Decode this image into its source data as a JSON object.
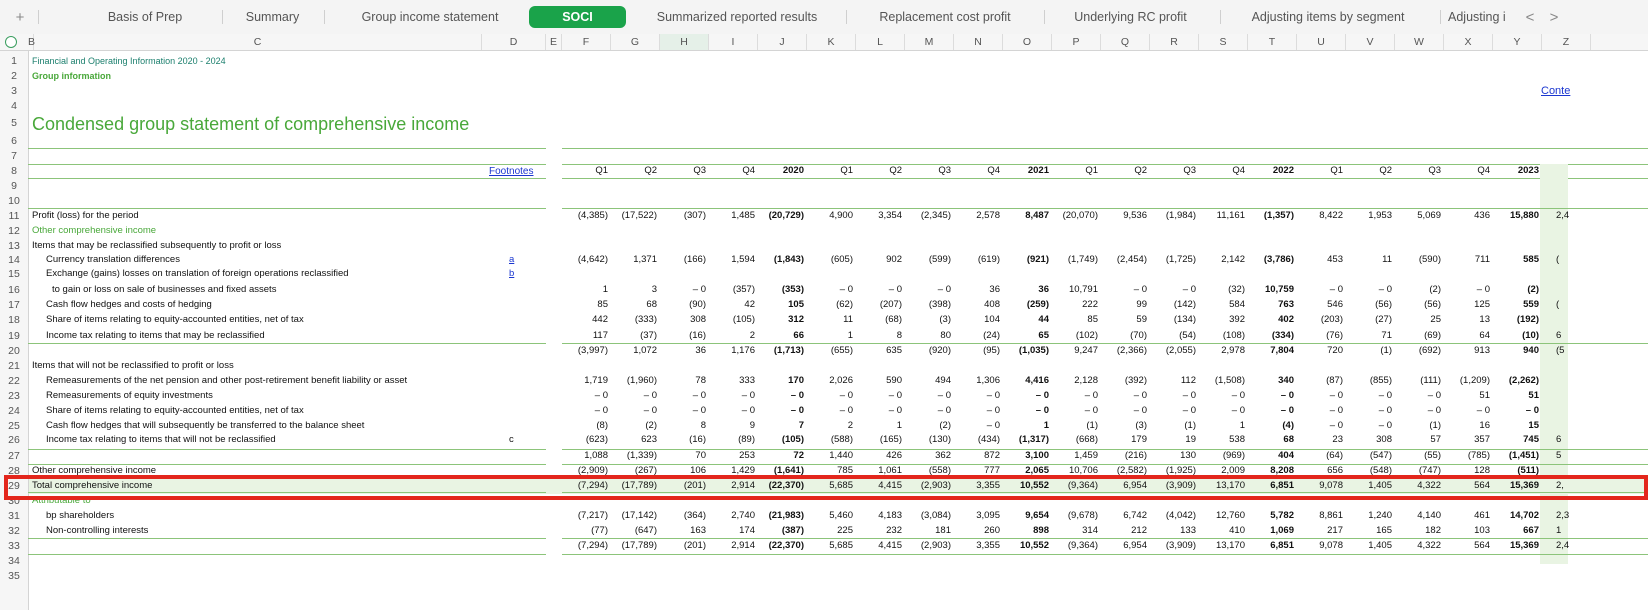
{
  "tabs": {
    "items": [
      "Basis of Prep",
      "Summary",
      "Group income statement",
      "SOCI",
      "Summarized reported results",
      "Replacement cost profit",
      "Underlying RC profit",
      "Adjusting items by segment",
      "Adjusting i"
    ],
    "active": "SOCI",
    "add_icon": "+",
    "prev_icon": "<",
    "next_icon": ">"
  },
  "columns": [
    "B",
    "C",
    "D",
    "E",
    "F",
    "G",
    "H",
    "I",
    "J",
    "K",
    "L",
    "M",
    "N",
    "O",
    "P",
    "Q",
    "R",
    "S",
    "T",
    "U",
    "V",
    "W",
    "X",
    "Y",
    "Z"
  ],
  "selected_column": "H",
  "rows": [
    "1",
    "2",
    "3",
    "4",
    "5",
    "6",
    "7",
    "8",
    "9",
    "10",
    "11",
    "12",
    "13",
    "14",
    "15",
    "16",
    "17",
    "18",
    "19",
    "20",
    "21",
    "22",
    "23",
    "24",
    "25",
    "26",
    "27",
    "28",
    "29",
    "30",
    "31",
    "32",
    "33",
    "34",
    "35"
  ],
  "sheet": {
    "financial_info": "Financial and Operating Information 2020 - 2024",
    "group_info": "Group information",
    "contents_link": "Conte",
    "title": "Condensed group statement of comprehensive income",
    "footnotes": "Footnotes",
    "periods": [
      "Q1",
      "Q2",
      "Q3",
      "Q4",
      "2020",
      "Q1",
      "Q2",
      "Q3",
      "Q4",
      "2021",
      "Q1",
      "Q2",
      "Q3",
      "Q4",
      "2022",
      "Q1",
      "Q2",
      "Q3",
      "Q4",
      "2023"
    ],
    "lines": [
      {
        "label": "Profit (loss) for the period",
        "values": [
          "(4,385)",
          "(17,522)",
          "(307)",
          "1,485",
          "(20,729)",
          "4,900",
          "3,354",
          "(2,345)",
          "2,578",
          "8,487",
          "(20,070)",
          "9,536",
          "(1,984)",
          "11,161",
          "(1,357)",
          "8,422",
          "1,953",
          "5,069",
          "436",
          "15,880"
        ],
        "extra": "2,4"
      },
      {
        "label": "Other comprehensive income",
        "values": []
      },
      {
        "label": "Items that may be reclassified subsequently to profit or loss",
        "values": []
      },
      {
        "label": "Currency translation differences",
        "foot": "a",
        "values": [
          "(4,642)",
          "1,371",
          "(166)",
          "1,594",
          "(1,843)",
          "(605)",
          "902",
          "(599)",
          "(619)",
          "(921)",
          "(1,749)",
          "(2,454)",
          "(1,725)",
          "2,142",
          "(3,786)",
          "453",
          "11",
          "(590)",
          "711",
          "585"
        ],
        "extra": "("
      },
      {
        "label": "Exchange (gains) losses on translation of foreign operations reclassified",
        "foot": "b",
        "values": []
      },
      {
        "label": "to gain or loss on sale of businesses and fixed assets",
        "values": [
          "1",
          "3",
          "– 0",
          "(357)",
          "(353)",
          "– 0",
          "– 0",
          "– 0",
          "36",
          "36",
          "10,791",
          "– 0",
          "– 0",
          "(32)",
          "10,759",
          "– 0",
          "– 0",
          "(2)",
          "– 0",
          "(2)"
        ]
      },
      {
        "label": "Cash flow hedges and costs of hedging",
        "values": [
          "85",
          "68",
          "(90)",
          "42",
          "105",
          "(62)",
          "(207)",
          "(398)",
          "408",
          "(259)",
          "222",
          "99",
          "(142)",
          "584",
          "763",
          "546",
          "(56)",
          "(56)",
          "125",
          "559"
        ],
        "extra": "("
      },
      {
        "label": "Share of items relating to equity-accounted entities, net of tax",
        "values": [
          "442",
          "(333)",
          "308",
          "(105)",
          "312",
          "11",
          "(68)",
          "(3)",
          "104",
          "44",
          "85",
          "59",
          "(134)",
          "392",
          "402",
          "(203)",
          "(27)",
          "25",
          "13",
          "(192)"
        ]
      },
      {
        "label": "Income tax relating to items that may be reclassified",
        "values": [
          "117",
          "(37)",
          "(16)",
          "2",
          "66",
          "1",
          "8",
          "80",
          "(24)",
          "65",
          "(102)",
          "(70)",
          "(54)",
          "(108)",
          "(334)",
          "(76)",
          "71",
          "(69)",
          "64",
          "(10)"
        ],
        "extra": "6"
      },
      {
        "label": "",
        "values": [
          "(3,997)",
          "1,072",
          "36",
          "1,176",
          "(1,713)",
          "(655)",
          "635",
          "(920)",
          "(95)",
          "(1,035)",
          "9,247",
          "(2,366)",
          "(2,055)",
          "2,978",
          "7,804",
          "720",
          "(1)",
          "(692)",
          "913",
          "940"
        ],
        "extra": "(5"
      },
      {
        "label": "Items that will not be reclassified to profit or loss",
        "values": []
      },
      {
        "label": "Remeasurements of the net pension and other post-retirement benefit liability or asset",
        "values": [
          "1,719",
          "(1,960)",
          "78",
          "333",
          "170",
          "2,026",
          "590",
          "494",
          "1,306",
          "4,416",
          "2,128",
          "(392)",
          "112",
          "(1,508)",
          "340",
          "(87)",
          "(855)",
          "(111)",
          "(1,209)",
          "(2,262)"
        ]
      },
      {
        "label": "Remeasurements of equity investments",
        "values": [
          "– 0",
          "– 0",
          "– 0",
          "– 0",
          "– 0",
          "– 0",
          "– 0",
          "– 0",
          "– 0",
          "– 0",
          "– 0",
          "– 0",
          "– 0",
          "– 0",
          "– 0",
          "– 0",
          "– 0",
          "– 0",
          "51",
          "51"
        ]
      },
      {
        "label": "Share of items relating to equity-accounted entities, net of tax",
        "values": [
          "– 0",
          "– 0",
          "– 0",
          "– 0",
          "– 0",
          "– 0",
          "– 0",
          "– 0",
          "– 0",
          "– 0",
          "– 0",
          "– 0",
          "– 0",
          "– 0",
          "– 0",
          "– 0",
          "– 0",
          "– 0",
          "– 0",
          "– 0"
        ]
      },
      {
        "label": "Cash flow hedges that will subsequently be transferred to the balance sheet",
        "values": [
          "(8)",
          "(2)",
          "8",
          "9",
          "7",
          "2",
          "1",
          "(2)",
          "– 0",
          "1",
          "(1)",
          "(3)",
          "(1)",
          "1",
          "(4)",
          "– 0",
          "– 0",
          "(1)",
          "16",
          "15"
        ]
      },
      {
        "label": "Income tax relating to items that will not be reclassified",
        "foot": "c",
        "values": [
          "(623)",
          "623",
          "(16)",
          "(89)",
          "(105)",
          "(588)",
          "(165)",
          "(130)",
          "(434)",
          "(1,317)",
          "(668)",
          "179",
          "19",
          "538",
          "68",
          "23",
          "308",
          "57",
          "357",
          "745"
        ],
        "extra": "6"
      },
      {
        "label": "",
        "values": [
          "1,088",
          "(1,339)",
          "70",
          "253",
          "72",
          "1,440",
          "426",
          "362",
          "872",
          "3,100",
          "1,459",
          "(216)",
          "130",
          "(969)",
          "404",
          "(64)",
          "(547)",
          "(55)",
          "(785)",
          "(1,451)"
        ],
        "extra": "5"
      },
      {
        "label": "Other comprehensive income",
        "values": [
          "(2,909)",
          "(267)",
          "106",
          "1,429",
          "(1,641)",
          "785",
          "1,061",
          "(558)",
          "777",
          "2,065",
          "10,706",
          "(2,582)",
          "(1,925)",
          "2,009",
          "8,208",
          "656",
          "(548)",
          "(747)",
          "128",
          "(511)"
        ]
      },
      {
        "label": "Total comprehensive income",
        "values": [
          "(7,294)",
          "(17,789)",
          "(201)",
          "2,914",
          "(22,370)",
          "5,685",
          "4,415",
          "(2,903)",
          "3,355",
          "10,552",
          "(9,364)",
          "6,954",
          "(3,909)",
          "13,170",
          "6,851",
          "9,078",
          "1,405",
          "4,322",
          "564",
          "15,369"
        ],
        "extra": "2,"
      },
      {
        "label": "Attributable to",
        "values": []
      },
      {
        "label": "bp shareholders",
        "values": [
          "(7,217)",
          "(17,142)",
          "(364)",
          "2,740",
          "(21,983)",
          "5,460",
          "4,183",
          "(3,084)",
          "3,095",
          "9,654",
          "(9,678)",
          "6,742",
          "(4,042)",
          "12,760",
          "5,782",
          "8,861",
          "1,240",
          "4,140",
          "461",
          "14,702"
        ],
        "extra": "2,3"
      },
      {
        "label": "Non-controlling interests",
        "values": [
          "(77)",
          "(647)",
          "163",
          "174",
          "(387)",
          "225",
          "232",
          "181",
          "260",
          "898",
          "314",
          "212",
          "133",
          "410",
          "1,069",
          "217",
          "165",
          "182",
          "103",
          "667"
        ],
        "extra": "1"
      },
      {
        "label": "",
        "values": [
          "(7,294)",
          "(17,789)",
          "(201)",
          "2,914",
          "(22,370)",
          "5,685",
          "4,415",
          "(2,903)",
          "3,355",
          "10,552",
          "(9,364)",
          "6,954",
          "(3,909)",
          "13,170",
          "6,851",
          "9,078",
          "1,405",
          "4,322",
          "564",
          "15,369"
        ],
        "extra": "2,4"
      }
    ]
  }
}
